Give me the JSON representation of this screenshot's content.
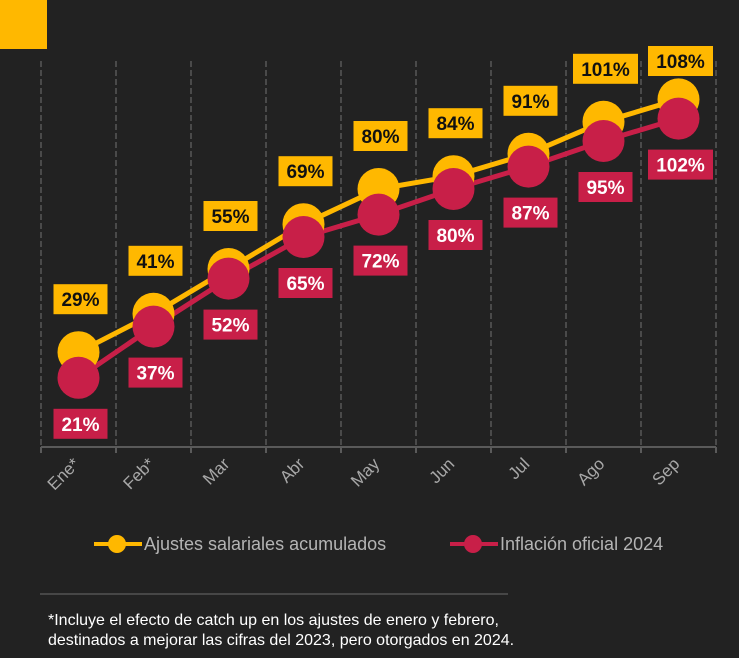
{
  "chart_data": {
    "type": "line",
    "categories": [
      "Ene*",
      "Feb*",
      "Mar",
      "Abr",
      "May",
      "Jun",
      "Jul",
      "Ago",
      "Sep"
    ],
    "series": [
      {
        "name": "Ajustes salariales acumulados",
        "color": "#FFB800",
        "label_color": "#111111",
        "values": [
          29,
          41,
          55,
          69,
          80,
          84,
          91,
          101,
          108
        ],
        "labels": [
          "29%",
          "41%",
          "55%",
          "69%",
          "80%",
          "84%",
          "91%",
          "101%",
          "108%"
        ]
      },
      {
        "name": "Inflación oficial 2024",
        "color": "#C81F48",
        "label_color": "#FFFFFF",
        "values": [
          21,
          37,
          52,
          65,
          72,
          80,
          87,
          95,
          102
        ],
        "labels": [
          "21%",
          "37%",
          "52%",
          "65%",
          "72%",
          "80%",
          "87%",
          "95%",
          "102%"
        ]
      }
    ],
    "title": "",
    "xlabel": "",
    "ylabel": "",
    "ylim": [
      0,
      120
    ],
    "grid": "vertical-dashed",
    "legend": "bottom"
  },
  "colors": {
    "background": "#222222",
    "accent": "#FFB800",
    "axis": "#5A5A5A",
    "tick_label": "#A8A8A8"
  },
  "footnote": {
    "line1": "*Incluye el efecto de catch up en los ajustes de enero y febrero,",
    "line2": "destinados a mejorar las cifras del 2023, pero otorgados en 2024."
  }
}
